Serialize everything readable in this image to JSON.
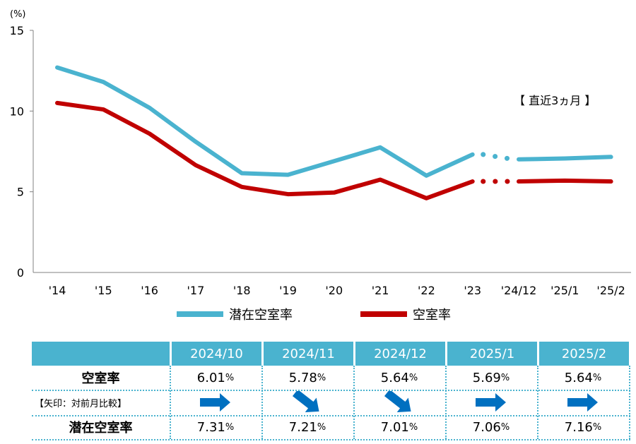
{
  "chart_data": {
    "type": "line",
    "unit_label": "(%)",
    "categories": [
      "'14",
      "'15",
      "'16",
      "'17",
      "'18",
      "'19",
      "'20",
      "'21",
      "'22",
      "'23",
      "'24/12",
      "'25/1",
      "'25/2"
    ],
    "ylim": [
      0,
      15
    ],
    "yticks": [
      "0",
      "5",
      "10",
      "15"
    ],
    "annotation": "【 直近3ヵ月 】",
    "series": [
      {
        "name": "潜在空室率",
        "color": "#4ab3cf",
        "values": [
          12.7,
          11.8,
          10.2,
          8.1,
          6.15,
          6.05,
          6.9,
          7.75,
          6.0,
          7.31,
          7.01,
          7.06,
          7.16
        ]
      },
      {
        "name": "空室率",
        "color": "#c00000",
        "values": [
          10.5,
          10.1,
          8.6,
          6.65,
          5.3,
          4.85,
          4.95,
          5.75,
          4.6,
          5.64,
          5.64,
          5.69,
          5.64
        ]
      }
    ]
  },
  "table": {
    "headers": [
      "2024/10",
      "2024/11",
      "2024/12",
      "2025/1",
      "2025/2"
    ],
    "vacancy_label": "空室率",
    "arrow_note": "【矢印：対前月比較】",
    "potential_label": "潜在空室率",
    "percent_sign": "%",
    "vacancy_values": [
      "6.01",
      "5.78",
      "5.64",
      "5.69",
      "5.64"
    ],
    "potential_values": [
      "7.31",
      "7.21",
      "7.01",
      "7.06",
      "7.16"
    ],
    "arrows": [
      "right",
      "down-right",
      "down-right",
      "right",
      "right"
    ],
    "arrow_color": "#0070c0"
  }
}
